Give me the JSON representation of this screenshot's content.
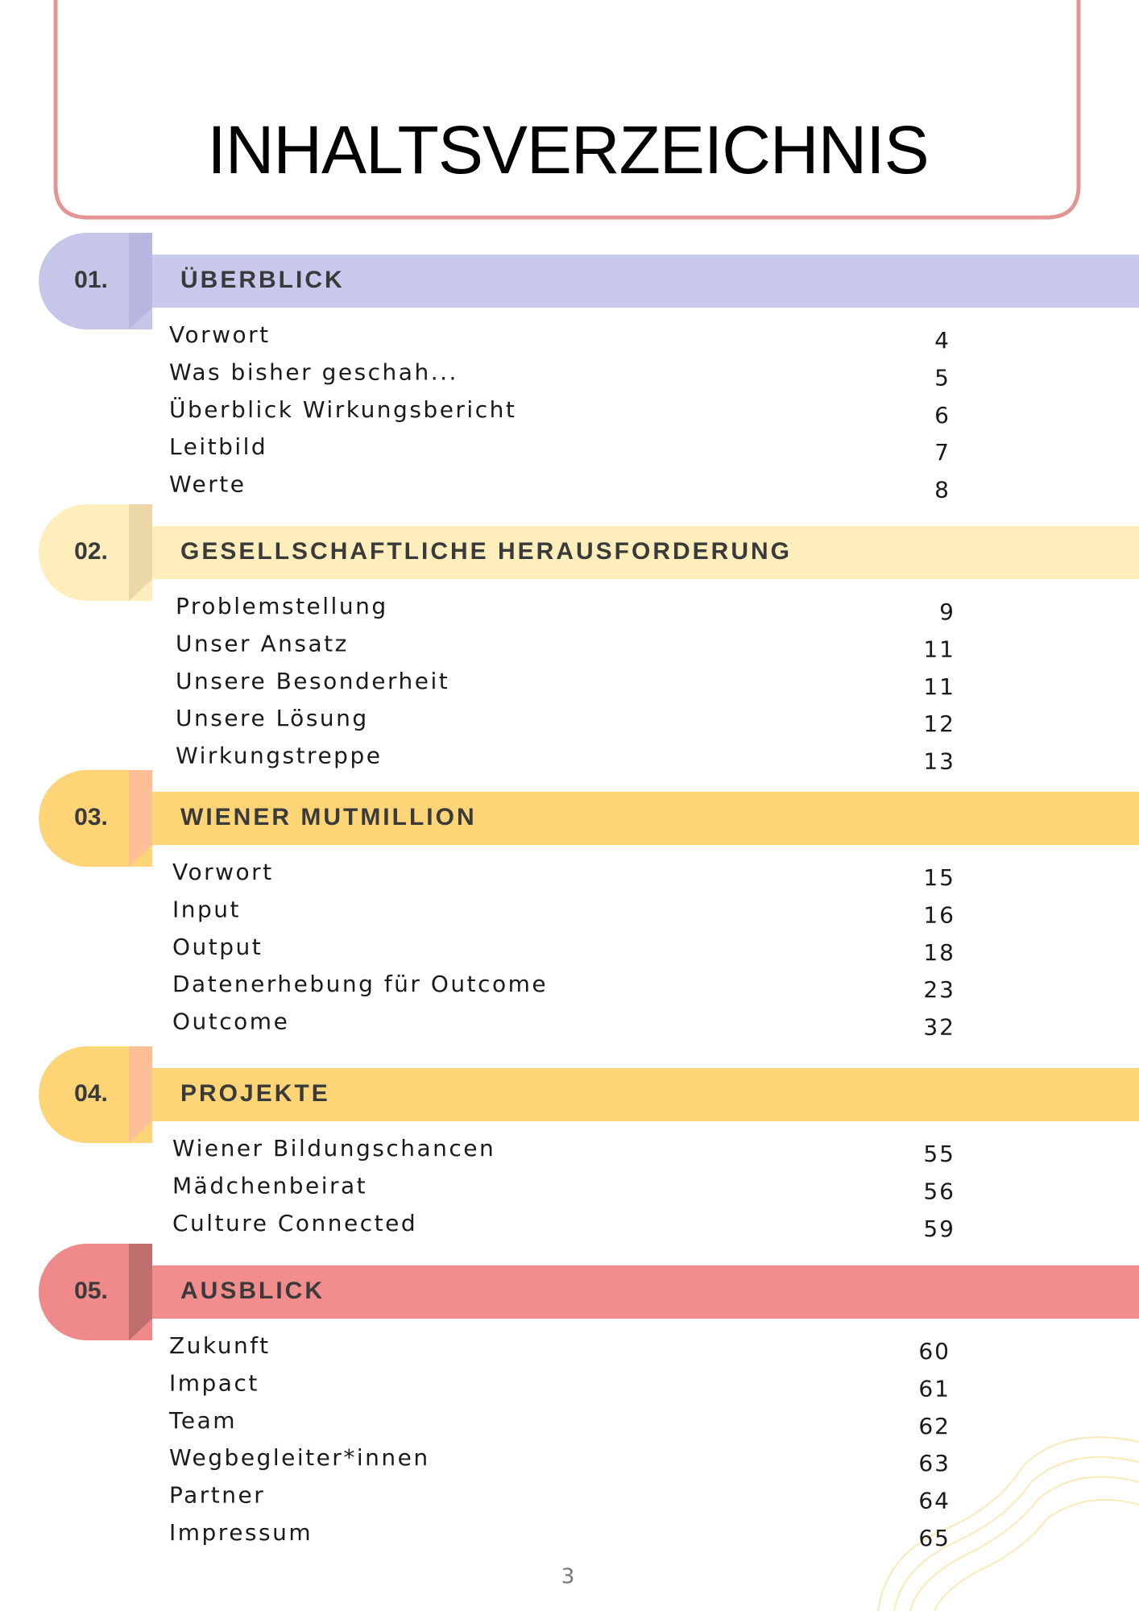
{
  "header": {
    "title": "INHALTSVERZEICHNIS"
  },
  "sections": [
    {
      "number": "01.",
      "title": "ÜBERBLICK",
      "items": [
        {
          "label": "Vorwort",
          "page": "4"
        },
        {
          "label": "Was bisher geschah...",
          "page": "5"
        },
        {
          "label": "Überblick Wirkungsbericht",
          "page": "6"
        },
        {
          "label": "Leitbild",
          "page": "7"
        },
        {
          "label": "Werte",
          "page": "8"
        }
      ]
    },
    {
      "number": "02.",
      "title": "GESELLSCHAFTLICHE HERAUSFORDERUNG",
      "items": [
        {
          "label": "Problemstellung",
          "page": "9"
        },
        {
          "label": "Unser Ansatz",
          "page": "11"
        },
        {
          "label": "Unsere Besonderheit",
          "page": "11"
        },
        {
          "label": "Unsere Lösung",
          "page": "12"
        },
        {
          "label": "Wirkungstreppe",
          "page": "13"
        }
      ]
    },
    {
      "number": "03.",
      "title": "WIENER MUTMILLION",
      "items": [
        {
          "label": "Vorwort",
          "page": "15"
        },
        {
          "label": "Input",
          "page": "16"
        },
        {
          "label": "Output",
          "page": "18"
        },
        {
          "label": "Datenerhebung für Outcome",
          "page": "23"
        },
        {
          "label": "Outcome",
          "page": "32"
        }
      ]
    },
    {
      "number": "04.",
      "title": "PROJEKTE",
      "items": [
        {
          "label": "Wiener Bildungschancen",
          "page": "55"
        },
        {
          "label": "Mädchenbeirat",
          "page": "56"
        },
        {
          "label": "Culture Connected",
          "page": "59"
        }
      ]
    },
    {
      "number": "05.",
      "title": "AUSBLICK",
      "items": [
        {
          "label": "Zukunft",
          "page": "60"
        },
        {
          "label": "Impact",
          "page": "61"
        },
        {
          "label": "Team",
          "page": "62"
        },
        {
          "label": "Wegbegleiter*innen",
          "page": "63"
        },
        {
          "label": "Partner",
          "page": "64"
        },
        {
          "label": "Impressum",
          "page": "65"
        }
      ]
    }
  ],
  "footer": {
    "page_number": "3"
  }
}
